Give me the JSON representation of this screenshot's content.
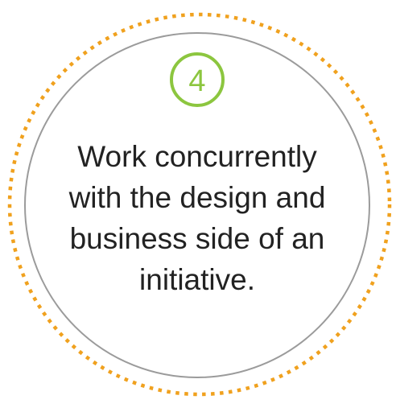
{
  "step": {
    "number": "4"
  },
  "statement": {
    "lines": [
      "Work concurrently",
      "with the design and",
      "business side of an",
      "initiative."
    ]
  },
  "colors": {
    "outer_ring_dotted": "#f0a11e",
    "inner_ring": "#9b9b9b",
    "badge_ring": "#8cc63f",
    "badge_number": "#8cc63f",
    "text": "#222222",
    "background": "#ffffff"
  }
}
